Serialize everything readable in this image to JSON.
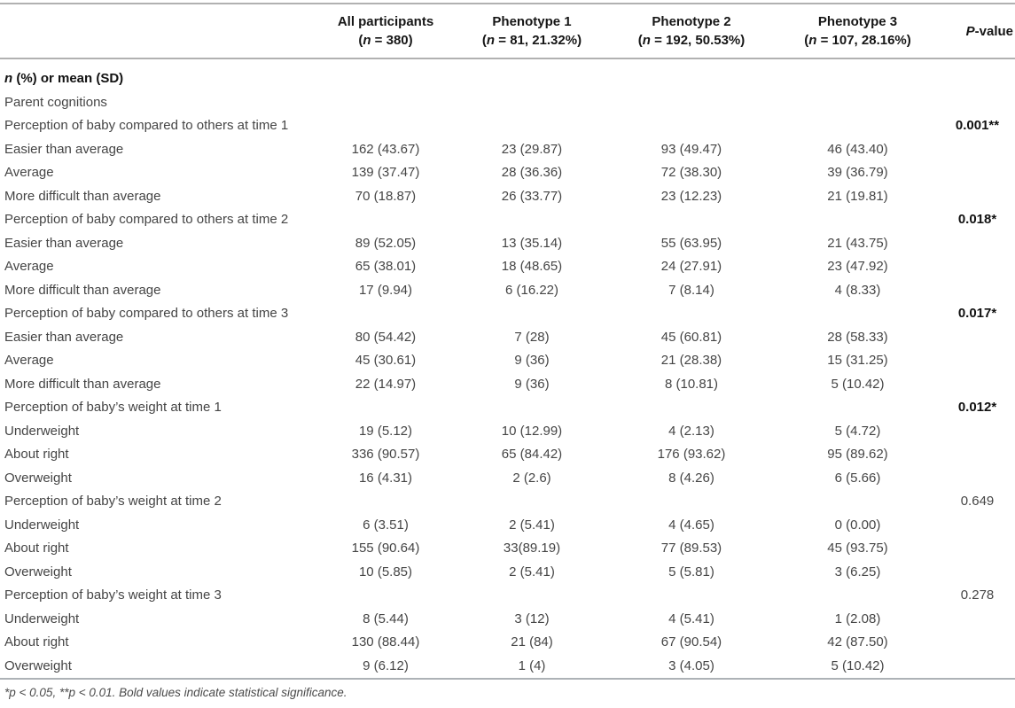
{
  "table": {
    "header": {
      "cols": [
        {
          "title": "",
          "sub": ""
        },
        {
          "title": "All participants",
          "sub": "(<i>n</i> = 380)"
        },
        {
          "title": "Phenotype 1",
          "sub": "(<i>n</i> = 81, 21.32%)"
        },
        {
          "title": "Phenotype 2",
          "sub": "(<i>n</i> = 192, 50.53%)"
        },
        {
          "title": "Phenotype 3",
          "sub": "(<i>n</i> = 107, 28.16%)"
        },
        {
          "title": "<i>P</i>-value",
          "sub": ""
        }
      ]
    },
    "rows": [
      {
        "type": "section_bold",
        "label": "<i>n</i> (%) or mean (SD)"
      },
      {
        "type": "section",
        "label": "Parent cognitions"
      },
      {
        "type": "category",
        "label": "Perception of baby compared to others at time 1",
        "p": "0.001**",
        "p_bold": true
      },
      {
        "type": "data",
        "label": "Easier than average",
        "values": [
          "162 (43.67)",
          "23 (29.87)",
          "93 (49.47)",
          "46 (43.40)"
        ]
      },
      {
        "type": "data",
        "label": "Average",
        "values": [
          "139 (37.47)",
          "28 (36.36)",
          "72 (38.30)",
          "39 (36.79)"
        ]
      },
      {
        "type": "data",
        "label": "More difficult than average",
        "values": [
          "70 (18.87)",
          "26 (33.77)",
          "23 (12.23)",
          "21 (19.81)"
        ]
      },
      {
        "type": "category",
        "label": "Perception of baby compared to others at time 2",
        "p": "0.018*",
        "p_bold": true
      },
      {
        "type": "data",
        "label": "Easier than average",
        "values": [
          "89 (52.05)",
          "13 (35.14)",
          "55 (63.95)",
          "21 (43.75)"
        ]
      },
      {
        "type": "data",
        "label": "Average",
        "values": [
          "65 (38.01)",
          "18 (48.65)",
          "24 (27.91)",
          "23 (47.92)"
        ]
      },
      {
        "type": "data",
        "label": "More difficult than average",
        "values": [
          "17 (9.94)",
          "6 (16.22)",
          "7 (8.14)",
          "4 (8.33)"
        ]
      },
      {
        "type": "category",
        "label": "Perception of baby compared to others at time 3",
        "p": "0.017*",
        "p_bold": true
      },
      {
        "type": "data",
        "label": "Easier than average",
        "values": [
          "80 (54.42)",
          "7 (28)",
          "45 (60.81)",
          "28 (58.33)"
        ]
      },
      {
        "type": "data",
        "label": "Average",
        "values": [
          "45 (30.61)",
          "9 (36)",
          "21 (28.38)",
          "15 (31.25)"
        ]
      },
      {
        "type": "data",
        "label": "More difficult than average",
        "values": [
          "22 (14.97)",
          "9 (36)",
          "8 (10.81)",
          "5 (10.42)"
        ]
      },
      {
        "type": "category",
        "label": "Perception of baby’s weight at time 1",
        "p": "0.012*",
        "p_bold": true
      },
      {
        "type": "data",
        "label": "Underweight",
        "values": [
          "19 (5.12)",
          "10 (12.99)",
          "4 (2.13)",
          "5 (4.72)"
        ]
      },
      {
        "type": "data",
        "label": "About right",
        "values": [
          "336 (90.57)",
          "65 (84.42)",
          "176 (93.62)",
          "95 (89.62)"
        ]
      },
      {
        "type": "data",
        "label": "Overweight",
        "values": [
          "16 (4.31)",
          "2 (2.6)",
          "8 (4.26)",
          "6 (5.66)"
        ]
      },
      {
        "type": "category",
        "label": "Perception of baby’s weight at time 2",
        "p": "0.649",
        "p_bold": false
      },
      {
        "type": "data",
        "label": "Underweight",
        "values": [
          "6 (3.51)",
          "2 (5.41)",
          "4 (4.65)",
          "0 (0.00)"
        ]
      },
      {
        "type": "data",
        "label": "About right",
        "values": [
          "155 (90.64)",
          "33(89.19)",
          "77 (89.53)",
          "45 (93.75)"
        ]
      },
      {
        "type": "data",
        "label": "Overweight",
        "values": [
          "10 (5.85)",
          "2 (5.41)",
          "5 (5.81)",
          "3 (6.25)"
        ]
      },
      {
        "type": "category",
        "label": "Perception of baby’s weight at time 3",
        "p": "0.278",
        "p_bold": false
      },
      {
        "type": "data",
        "label": "Underweight",
        "values": [
          "8 (5.44)",
          "3 (12)",
          "4 (5.41)",
          "1 (2.08)"
        ]
      },
      {
        "type": "data",
        "label": "About right",
        "values": [
          "130 (88.44)",
          "21 (84)",
          "67 (90.54)",
          "42 (87.50)"
        ]
      },
      {
        "type": "data",
        "label": "Overweight",
        "values": [
          "9 (6.12)",
          "1 (4)",
          "3 (4.05)",
          "5 (10.42)"
        ]
      }
    ],
    "footnote": "*<i>p</i> < 0.05, **<i>p</i> < 0.01. Bold values indicate statistical significance."
  }
}
